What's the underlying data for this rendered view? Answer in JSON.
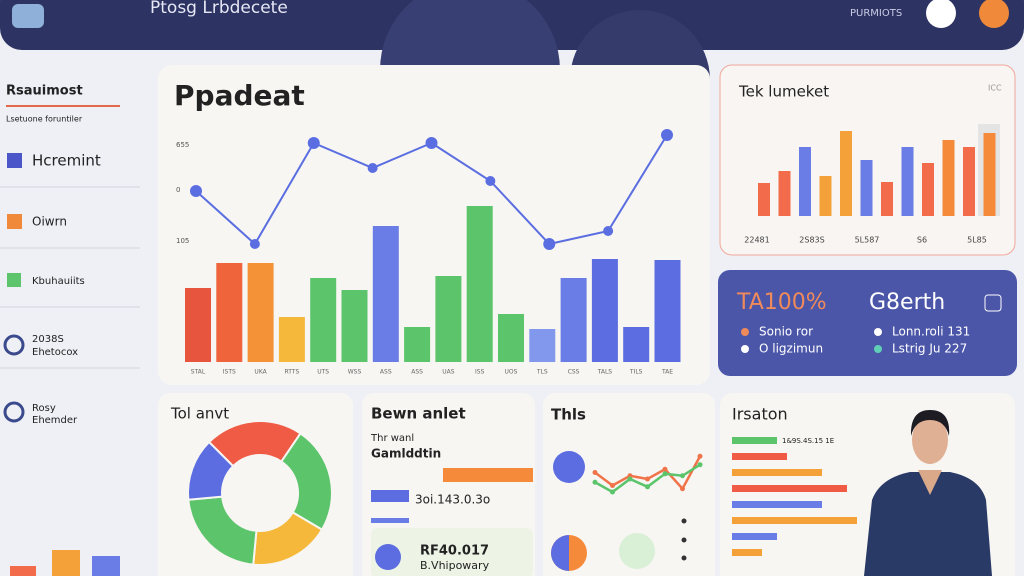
{
  "header": {
    "title": "Ptosg Lrbdecete",
    "badge": "PURMIOTS"
  },
  "sidebar": {
    "title": "Rsauimost",
    "subtitle": "Lsetuone foruntiler",
    "items": [
      {
        "label": "Hcremint"
      },
      {
        "label": "Oiwrn"
      },
      {
        "label": "Kbuhauiits"
      },
      {
        "label": "2038S",
        "sub": "Ehetocox"
      },
      {
        "label": "Rosy",
        "sub": "Ehemder"
      }
    ]
  },
  "main_chart": {
    "type": "bar",
    "title": "Ppadeat",
    "axis_labels": [
      "655",
      "0",
      "105"
    ],
    "categories": [
      "STAL",
      "ISTS",
      "UKA",
      "RTTS",
      "UTS",
      "WSS",
      "ASS",
      "ASS",
      "UAS",
      "ISS",
      "UOS",
      "TLS",
      "CSS",
      "TALS",
      "TILS",
      "TAE"
    ],
    "values": [
      74,
      99,
      99,
      45,
      84,
      72,
      136,
      35,
      86,
      156,
      48,
      33,
      84,
      103,
      35,
      102
    ],
    "colors": [
      "#e8553f",
      "#f0643c",
      "#f39237",
      "#f5b83a",
      "#5cc46a",
      "#5cc46a",
      "#6a7de6",
      "#5cc46a",
      "#5cc46a",
      "#5cc46a",
      "#5cc46a",
      "#8198ec",
      "#6a7de6",
      "#5b6de0",
      "#5b6de0",
      "#5b6de0"
    ],
    "line": [
      171,
      118,
      219,
      194,
      219,
      181,
      118,
      131,
      227
    ],
    "line_color": "#5b6ee1",
    "ylim": [
      0,
      250
    ]
  },
  "market_chart": {
    "type": "bar",
    "title": "Tek lumeket",
    "corner": "ICC",
    "categories": [
      "22481",
      "2S83S",
      "5L587",
      "S6",
      "5L85"
    ],
    "values": [
      33,
      45,
      69,
      40,
      85,
      56,
      34,
      69,
      53,
      76,
      69,
      83
    ],
    "colors": [
      "#f26b4a",
      "#f26b4a",
      "#6a7de6",
      "#f5a13a",
      "#f5a13a",
      "#6a7de6",
      "#f26b4a",
      "#6a7de6",
      "#f26b4a",
      "#f58a3a",
      "#f26b4a",
      "#f58a3a"
    ],
    "background_value": 92,
    "ylim": [
      0,
      100
    ]
  },
  "growth": {
    "headline": "TA100%",
    "label": "G8erth",
    "bullets": [
      "Sonio ror",
      "O ligzimun",
      "Lonn.roli 131",
      "Lstrig Ju 227"
    ],
    "bullet_colors": [
      "#f08a5a",
      "#ffffff",
      "#ffffff",
      "#5fd0b5"
    ]
  },
  "donut": {
    "type": "pie",
    "title": "Tol anvt",
    "values": [
      22,
      24,
      18,
      22,
      14
    ],
    "colors": [
      "#ef5b45",
      "#5cc46a",
      "#f5b83a",
      "#5cc46a",
      "#5b6de0"
    ]
  },
  "balance": {
    "title": "Bewn anlet",
    "line1": "Thr wanl",
    "line2": "Gamlddtin",
    "amount": "3oi.143.0.3o",
    "total": "RF40.017",
    "total_sub": "B.Vhipowary"
  },
  "trend": {
    "type": "line",
    "title": "Thls",
    "ylim": [
      0,
      100
    ],
    "series": [
      {
        "color": "#f0734a",
        "values": [
          50,
          30,
          45,
          40,
          55,
          25,
          75
        ]
      },
      {
        "color": "#5cc46a",
        "values": [
          35,
          20,
          40,
          28,
          48,
          45,
          62
        ]
      }
    ]
  },
  "ratio": {
    "type": "bar",
    "title": "Irsaton",
    "row_label": "1&9S.4S.15 1E",
    "values": [
      45,
      55,
      90,
      115,
      90,
      125,
      45,
      30
    ],
    "colors": [
      "#5cc46a",
      "#ef5b45",
      "#f5a13a",
      "#ef5b45",
      "#6a7de6",
      "#f5a13a",
      "#6a7de6",
      "#f5a13a"
    ],
    "xlim": [
      0,
      150
    ]
  }
}
